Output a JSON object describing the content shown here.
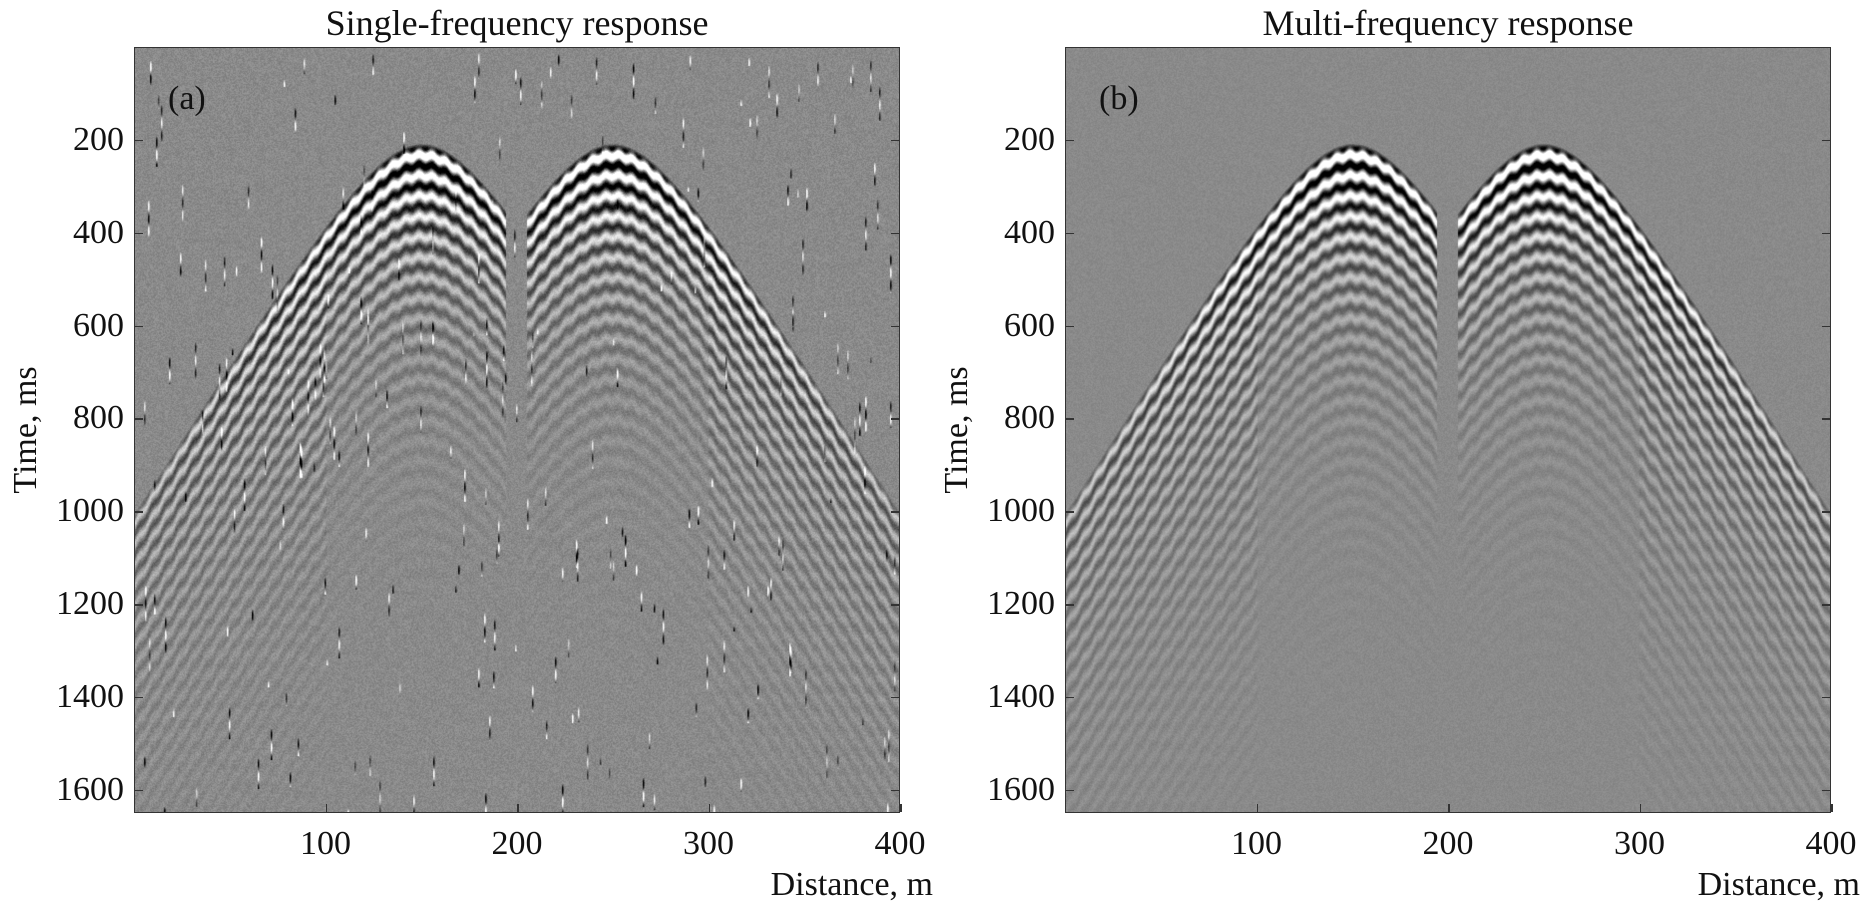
{
  "chart_data": [
    {
      "type": "heatmap",
      "panel_label": "(a)",
      "title": "Single-frequency response",
      "xlabel": "Distance, m",
      "ylabel": "Time, ms",
      "xlim": [
        0,
        400
      ],
      "ylim": [
        1650,
        0
      ],
      "xticks": [
        "100",
        "200",
        "300",
        "400"
      ],
      "yticks": [
        "200",
        "400",
        "600",
        "800",
        "1000",
        "1200",
        "1400",
        "1600"
      ],
      "colormap": "gray",
      "sources_x_m": [
        150,
        250
      ],
      "apex_time_ms": 220,
      "noise": "high, with vertical spike traces"
    },
    {
      "type": "heatmap",
      "panel_label": "(b)",
      "title": "Multi-frequency response",
      "xlabel": "Distance, m",
      "ylabel": "Time, ms",
      "xlim": [
        0,
        400
      ],
      "ylim": [
        1650,
        0
      ],
      "xticks": [
        "100",
        "200",
        "300",
        "400"
      ],
      "yticks": [
        "200",
        "400",
        "600",
        "800",
        "1000",
        "1200",
        "1400",
        "1600"
      ],
      "colormap": "gray",
      "sources_x_m": [
        150,
        250
      ],
      "apex_time_ms": 220,
      "noise": "low"
    }
  ]
}
